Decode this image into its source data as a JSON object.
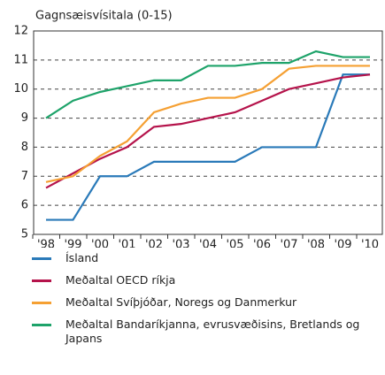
{
  "chart_data": {
    "type": "line",
    "ylabel": "Gagnsæisvísitala (0-15)",
    "categories": [
      "'98",
      "'99",
      "'00",
      "'01",
      "'02",
      "'03",
      "'04",
      "'05",
      "'06",
      "'07",
      "'08",
      "'09",
      "'10"
    ],
    "series": [
      {
        "name": "Ísland",
        "color": "#2a7ab9",
        "values": [
          5.5,
          5.5,
          7,
          7,
          7.5,
          7.5,
          7.5,
          7.5,
          8,
          8,
          8,
          10.5,
          10.5
        ]
      },
      {
        "name": "Meðaltal OECD ríkja",
        "color": "#b5134b",
        "values": [
          6.6,
          7.1,
          7.6,
          8.0,
          8.7,
          8.8,
          9.0,
          9.2,
          9.6,
          10.0,
          10.2,
          10.4,
          10.5
        ]
      },
      {
        "name": "Meðaltal Svíþjóðar, Noregs og Danmerkur",
        "color": "#f5a033",
        "values": [
          6.8,
          7.0,
          7.7,
          8.2,
          9.2,
          9.5,
          9.7,
          9.7,
          10.0,
          10.7,
          10.8,
          10.8,
          10.8
        ]
      },
      {
        "name": "Meðaltal Bandaríkjanna, evrusvæðisins, Bretlands og Japans",
        "color": "#1ea36a",
        "values": [
          9.0,
          9.6,
          9.9,
          10.1,
          10.3,
          10.3,
          10.8,
          10.8,
          10.9,
          10.9,
          11.3,
          11.1,
          11.1
        ]
      }
    ],
    "ylim": [
      5,
      12
    ],
    "yticks": [
      5,
      6,
      7,
      8,
      9,
      10,
      11,
      12
    ],
    "grid": true
  }
}
